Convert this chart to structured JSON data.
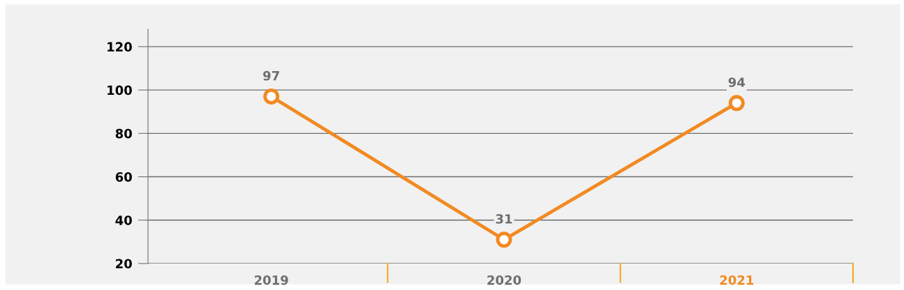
{
  "chart_data": {
    "type": "line",
    "categories": [
      "2019",
      "2020",
      "2021"
    ],
    "series": [
      {
        "color": "#f28a22",
        "values": [
          97,
          31,
          94
        ]
      }
    ],
    "ylim": [
      20,
      128
    ],
    "yticks": [
      20,
      40,
      60,
      80,
      100,
      120
    ],
    "grid": "y",
    "marker": "circle",
    "line_style": "solid",
    "data_labels": true
  }
}
